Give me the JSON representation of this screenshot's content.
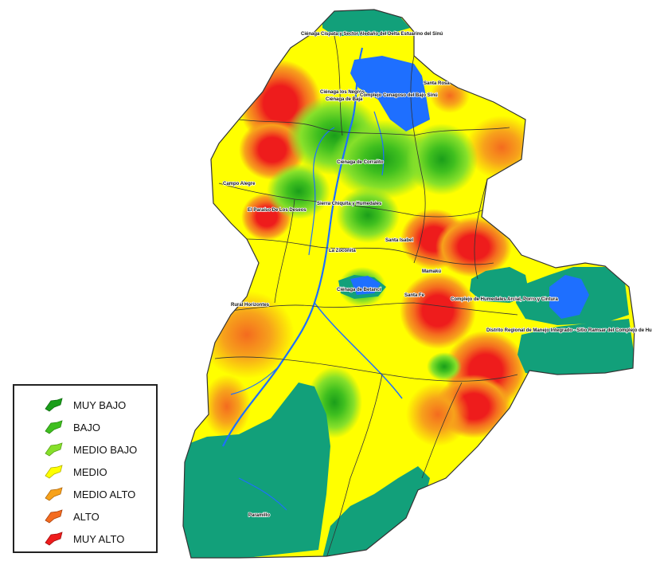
{
  "legend": {
    "items": [
      {
        "label": "MUY BAJO",
        "color": "#1a9e1a"
      },
      {
        "label": "BAJO",
        "color": "#3fbf1f"
      },
      {
        "label": "MEDIO BAJO",
        "color": "#86e02a"
      },
      {
        "label": "MEDIO",
        "color": "#ffff00"
      },
      {
        "label": "MEDIO ALTO",
        "color": "#f7a21b"
      },
      {
        "label": "ALTO",
        "color": "#f46b1f"
      },
      {
        "label": "MUY ALTO",
        "color": "#ee1c1c"
      }
    ]
  },
  "map": {
    "colors": {
      "protected_area": "#12a07a",
      "water": "#1e6fff",
      "base": "#ffff00",
      "border": "#333333"
    },
    "places": [
      "Ciénaga Cispata y Sector Aledaño del Delta Estuarino del Sinú",
      "Ciénaga los Negros",
      "Ciénaga de Baja",
      "Complejo Cenagoso del Bajo Sinú",
      "Santa Rosa",
      "Ciénaga de Corralito",
      "Campo Alegre",
      "Sierra Chiquita y Humedales",
      "El Paraíso De Los Deseos",
      "Santa Isabel",
      "La Zoconita",
      "Mamakú",
      "Ciénaga de Betancí",
      "Santa Fe",
      "Complejo de Humedales Arcial, Porro y Cintura",
      "Rural Horizontes",
      "Distrito Regional de Manejo Integrado - Sitio Ramsar del Complejo de Hu",
      "Paramillo"
    ]
  }
}
